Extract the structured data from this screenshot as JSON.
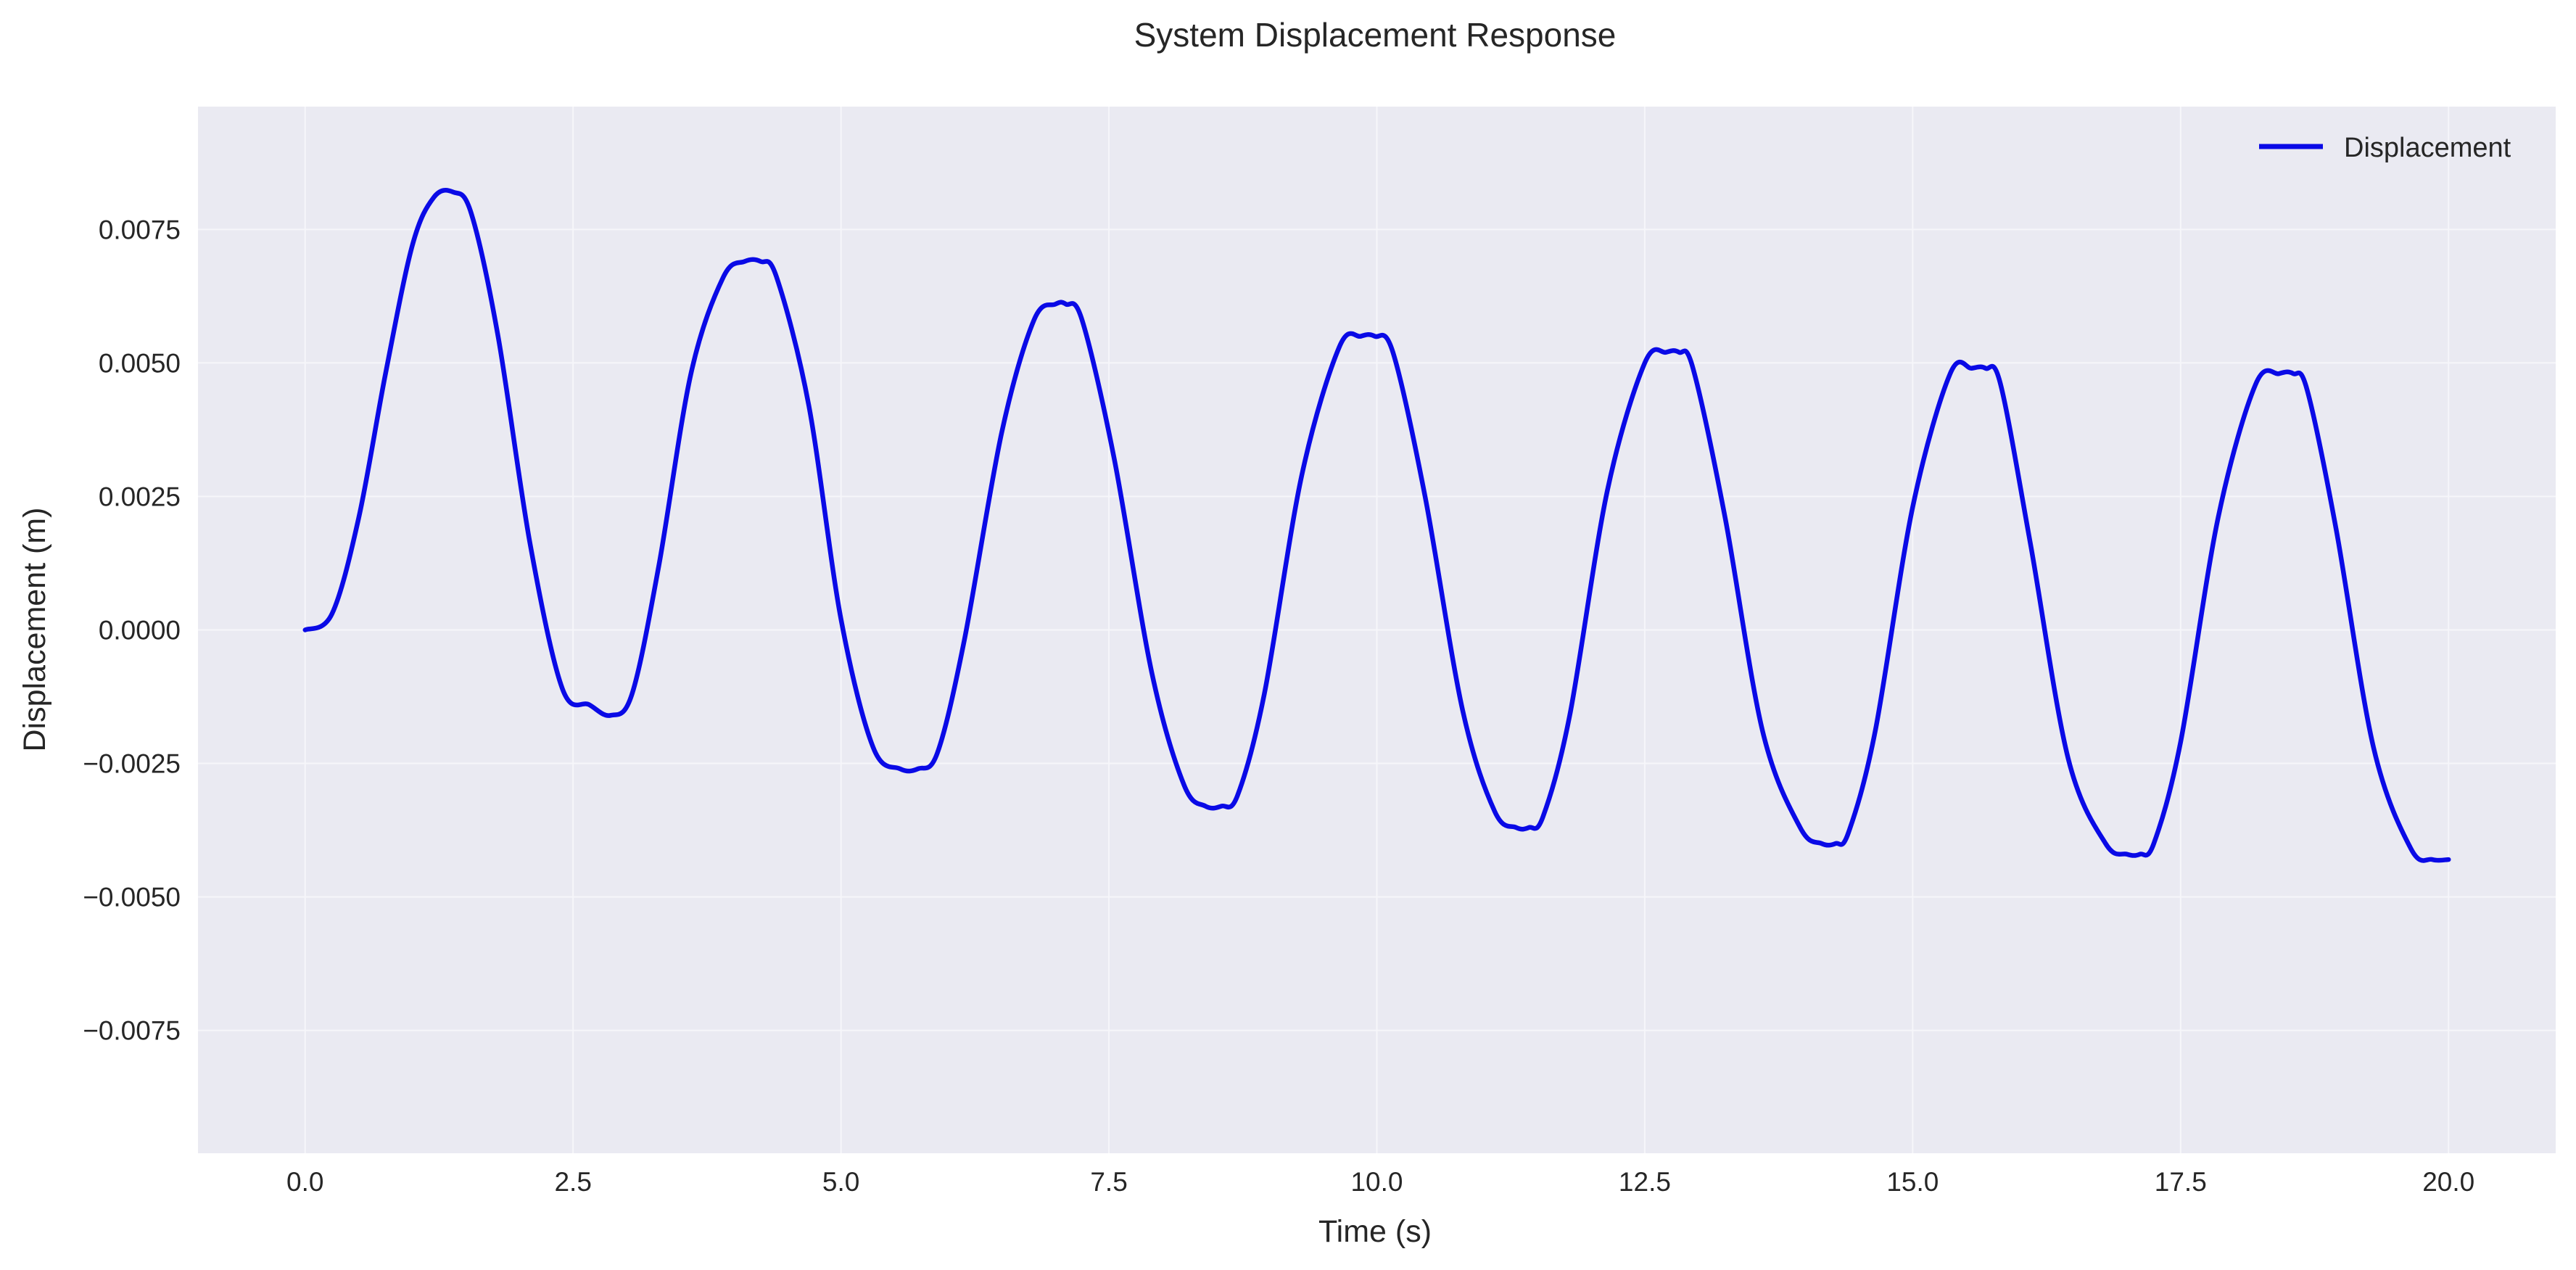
{
  "chart_data": {
    "type": "line",
    "title": "System Displacement Response",
    "xlabel": "Time (s)",
    "ylabel": "Displacement (m)",
    "xlim": [
      -1.0,
      21.0
    ],
    "ylim": [
      -0.0098,
      0.0098
    ],
    "x_ticks": [
      0.0,
      2.5,
      5.0,
      7.5,
      10.0,
      12.5,
      15.0,
      17.5,
      20.0
    ],
    "x_tick_labels": [
      "0.0",
      "2.5",
      "5.0",
      "7.5",
      "10.0",
      "12.5",
      "15.0",
      "17.5",
      "20.0"
    ],
    "y_ticks": [
      -0.0075,
      -0.005,
      -0.0025,
      0.0,
      0.0025,
      0.005,
      0.0075
    ],
    "y_tick_labels": [
      "−0.0075",
      "−0.0050",
      "−0.0025",
      "0.0000",
      "0.0025",
      "0.0050",
      "0.0075"
    ],
    "grid": true,
    "legend_position": "top-right",
    "background_color": "#eaeaf2",
    "grid_color": "#f6f6fa",
    "series": [
      {
        "name": "Displacement",
        "color": "#0a0ae6",
        "x": [
          0.0,
          0.25,
          0.5,
          0.75,
          1.0,
          1.2,
          1.38,
          1.55,
          1.8,
          2.1,
          2.4,
          2.65,
          2.85,
          3.05,
          3.3,
          3.6,
          3.9,
          4.1,
          4.25,
          4.4,
          4.7,
          5.0,
          5.3,
          5.55,
          5.72,
          5.9,
          6.15,
          6.5,
          6.8,
          7.0,
          7.1,
          7.25,
          7.55,
          7.9,
          8.2,
          8.4,
          8.55,
          8.7,
          8.95,
          9.3,
          9.65,
          9.85,
          9.98,
          10.15,
          10.45,
          10.8,
          11.1,
          11.3,
          11.42,
          11.55,
          11.8,
          12.15,
          12.5,
          12.7,
          12.82,
          12.95,
          13.25,
          13.6,
          13.95,
          14.15,
          14.28,
          14.4,
          14.65,
          15.0,
          15.35,
          15.55,
          15.68,
          15.82,
          16.1,
          16.45,
          16.8,
          17.0,
          17.12,
          17.25,
          17.5,
          17.85,
          18.2,
          18.42,
          18.55,
          18.68,
          18.95,
          19.3,
          19.65,
          19.85,
          20.0
        ],
        "values": [
          0.0,
          0.0003,
          0.0021,
          0.0048,
          0.0072,
          0.0081,
          0.0082,
          0.0078,
          0.0055,
          0.0016,
          -0.0011,
          -0.0014,
          -0.0016,
          -0.0012,
          0.0012,
          0.0048,
          0.0066,
          0.0069,
          0.0069,
          0.0066,
          0.0042,
          0.0002,
          -0.0022,
          -0.0026,
          -0.0026,
          -0.0023,
          -0.0002,
          0.0037,
          0.0058,
          0.0061,
          0.0061,
          0.0058,
          0.0032,
          -0.0008,
          -0.0029,
          -0.0033,
          -0.0033,
          -0.0031,
          -0.0012,
          0.0029,
          0.0053,
          0.0055,
          0.0055,
          0.0052,
          0.0025,
          -0.0015,
          -0.0034,
          -0.0037,
          -0.0037,
          -0.0035,
          -0.0016,
          0.0026,
          0.005,
          0.0052,
          0.0052,
          0.0049,
          0.0021,
          -0.0019,
          -0.0037,
          -0.004,
          -0.004,
          -0.0038,
          -0.0019,
          0.0023,
          0.0048,
          0.0049,
          0.0049,
          0.0046,
          0.0016,
          -0.0024,
          -0.004,
          -0.0042,
          -0.0042,
          -0.004,
          -0.0021,
          0.0021,
          0.0046,
          0.0048,
          0.0048,
          0.0045,
          0.0019,
          -0.0022,
          -0.0041,
          -0.0043,
          -0.0043
        ]
      }
    ]
  }
}
